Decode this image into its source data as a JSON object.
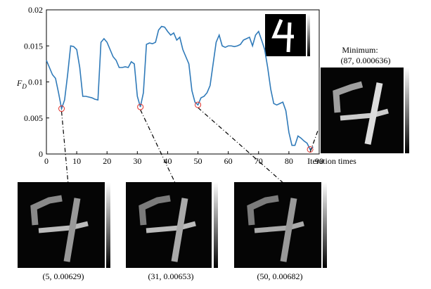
{
  "chart_data": {
    "type": "line",
    "ylabel": "F",
    "ylabel_sub": "D",
    "xlabel": "Iteration times",
    "xlim": [
      0,
      90
    ],
    "ylim": [
      0,
      0.02
    ],
    "xticks": [
      0,
      10,
      20,
      30,
      40,
      50,
      60,
      70,
      80,
      90
    ],
    "yticks": [
      0,
      0.005,
      0.01,
      0.015,
      0.02
    ],
    "series": [
      {
        "color": "#2f7ab9",
        "x": [
          0,
          1,
          2,
          3,
          4,
          5,
          6,
          7,
          8,
          9,
          10,
          11,
          12,
          13,
          14,
          15,
          16,
          17,
          18,
          19,
          20,
          21,
          22,
          23,
          24,
          25,
          26,
          27,
          28,
          29,
          30,
          31,
          32,
          33,
          34,
          35,
          36,
          37,
          38,
          39,
          40,
          41,
          42,
          43,
          44,
          45,
          46,
          47,
          48,
          49,
          50,
          51,
          52,
          53,
          54,
          55,
          56,
          57,
          58,
          59,
          60,
          61,
          62,
          63,
          64,
          65,
          66,
          67,
          68,
          69,
          70,
          71,
          72,
          73,
          74,
          75,
          76,
          77,
          78,
          79,
          80,
          81,
          82,
          83,
          84,
          85,
          86,
          87,
          88
        ],
        "values": [
          0.013,
          0.012,
          0.011,
          0.0105,
          0.0085,
          0.00629,
          0.0075,
          0.011,
          0.015,
          0.0149,
          0.0145,
          0.012,
          0.008,
          0.008,
          0.0079,
          0.0078,
          0.0076,
          0.0075,
          0.0155,
          0.016,
          0.0155,
          0.0145,
          0.0135,
          0.013,
          0.012,
          0.012,
          0.0121,
          0.012,
          0.0128,
          0.0125,
          0.008,
          0.00653,
          0.0085,
          0.0152,
          0.0154,
          0.0153,
          0.0155,
          0.0172,
          0.0177,
          0.0176,
          0.017,
          0.0165,
          0.0168,
          0.0158,
          0.0162,
          0.0145,
          0.0135,
          0.0125,
          0.0088,
          0.0072,
          0.00682,
          0.0078,
          0.008,
          0.0085,
          0.0095,
          0.0125,
          0.0155,
          0.0165,
          0.015,
          0.0148,
          0.015,
          0.015,
          0.0149,
          0.015,
          0.0152,
          0.0158,
          0.016,
          0.0162,
          0.015,
          0.0165,
          0.017,
          0.0158,
          0.0145,
          0.012,
          0.009,
          0.007,
          0.0068,
          0.007,
          0.0072,
          0.006,
          0.003,
          0.0012,
          0.0012,
          0.0025,
          0.0022,
          0.0018,
          0.0015,
          0.000636,
          0.001
        ]
      }
    ],
    "highlights": [
      {
        "x": 5,
        "y": 0.00629,
        "label": "(5, 0.00629)"
      },
      {
        "x": 31,
        "y": 0.00653,
        "label": "(31, 0.00653)"
      },
      {
        "x": 50,
        "y": 0.00682,
        "label": "(50, 0.00682)"
      },
      {
        "x": 87,
        "y": 0.000636,
        "label": "(87, 0.000636)"
      }
    ],
    "minimum_title": "Minimum:"
  }
}
